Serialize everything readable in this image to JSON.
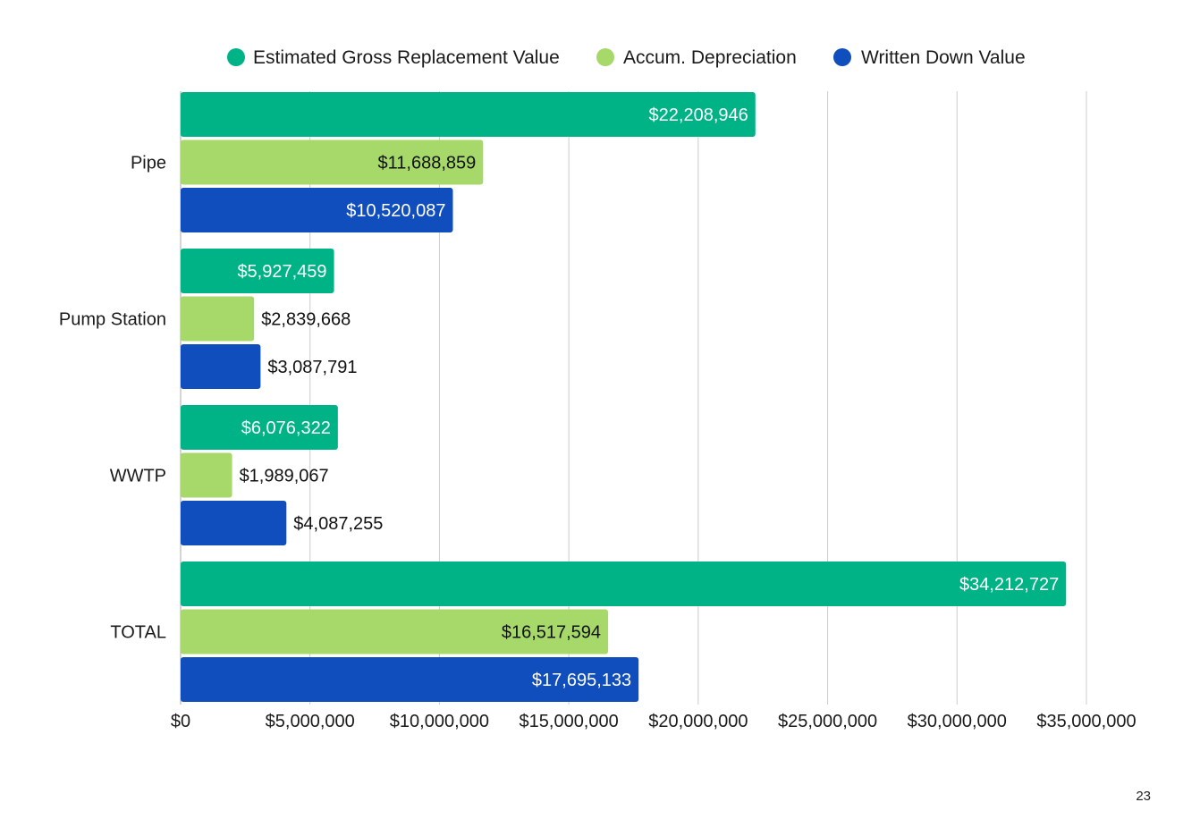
{
  "page_number": "23",
  "chart_data": {
    "type": "bar",
    "orientation": "horizontal",
    "title": "",
    "xlabel": "",
    "ylabel": "",
    "categories": [
      "Pipe",
      "Pump Station",
      "WWTP",
      "TOTAL"
    ],
    "series": [
      {
        "name": "Estimated Gross Replacement Value",
        "color": "#00B386",
        "label_color": "#ffffff",
        "values": [
          22208946,
          5927459,
          6076322,
          34212727
        ],
        "labels": [
          "$22,208,946",
          "$5,927,459",
          "$6,076,322",
          "$34,212,727"
        ]
      },
      {
        "name": "Accum. Depreciation",
        "color": "#A6D96A",
        "label_color": "#111111",
        "values": [
          11688859,
          2839668,
          1989067,
          16517594
        ],
        "labels": [
          "$11,688,859",
          "$2,839,668",
          "$1,989,067",
          "$16,517,594"
        ]
      },
      {
        "name": "Written Down Value",
        "color": "#104EBE",
        "label_color": "#ffffff",
        "values": [
          10520087,
          3087791,
          4087255,
          17695133
        ],
        "labels": [
          "$10,520,087",
          "$3,087,791",
          "$4,087,255",
          "$17,695,133"
        ]
      }
    ],
    "xlim": [
      0,
      35000000
    ],
    "x_ticks": [
      0,
      5000000,
      10000000,
      15000000,
      20000000,
      25000000,
      30000000,
      35000000
    ],
    "x_tick_labels": [
      "$0",
      "$5,000,000",
      "$10,000,000",
      "$15,000,000",
      "$20,000,000",
      "$25,000,000",
      "$30,000,000",
      "$35,000,000"
    ],
    "grid": true,
    "legend_position": "top",
    "gridline_color": "#cccccc",
    "axis_color": "#aaaaaa"
  }
}
